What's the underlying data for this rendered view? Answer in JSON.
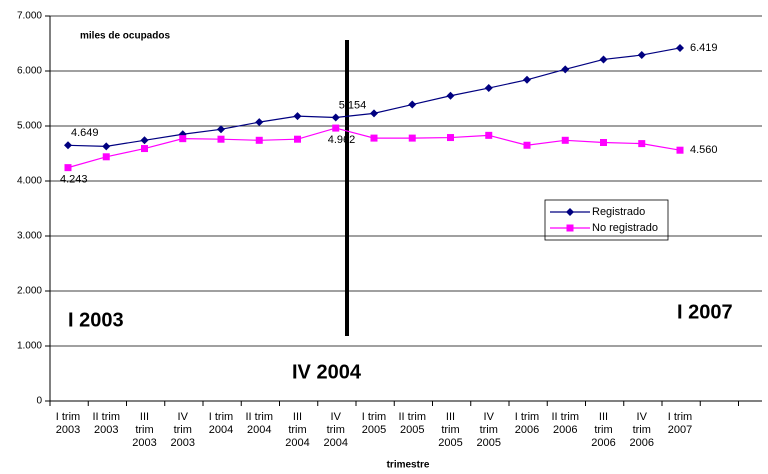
{
  "chart_data": {
    "type": "line",
    "subtitle": "miles de ocupados",
    "x_label": "trimestre",
    "annotations": [
      "I 2003",
      "IV 2004",
      "I 2007"
    ],
    "categories": [
      "I trim\n2003",
      "II trim\n2003",
      "III\ntrim\n2003",
      "IV\ntrim\n2003",
      "I trim\n2004",
      "II trim\n2004",
      "III\ntrim\n2004",
      "IV\ntrim\n2004",
      "I trim\n2005",
      "II trim\n2005",
      "III\ntrim\n2005",
      "IV\ntrim\n2005",
      "I trim\n2006",
      "II trim\n2006",
      "III\ntrim\n2006",
      "IV\ntrim\n2006",
      "I trim\n2007"
    ],
    "series": [
      {
        "name": "Registrado",
        "color": "#000080",
        "marker": "diamond",
        "values": [
          4649,
          4630,
          4740,
          4850,
          4940,
          5070,
          5180,
          5154,
          5230,
          5390,
          5550,
          5690,
          5840,
          6030,
          6210,
          6290,
          6419
        ],
        "value_labels": [
          "4.649",
          null,
          null,
          null,
          null,
          null,
          null,
          "5.154",
          null,
          null,
          null,
          null,
          null,
          null,
          null,
          null,
          "6.419"
        ]
      },
      {
        "name": "No registrado",
        "color": "#ff00ff",
        "marker": "square",
        "values": [
          4243,
          4440,
          4590,
          4770,
          4760,
          4740,
          4760,
          4962,
          4780,
          4780,
          4790,
          4830,
          4650,
          4740,
          4700,
          4680,
          4560
        ],
        "value_labels": [
          "4.243",
          null,
          null,
          null,
          null,
          null,
          null,
          "4.962",
          null,
          null,
          null,
          null,
          null,
          null,
          null,
          null,
          "4.560"
        ]
      }
    ],
    "ylim": [
      0,
      7000
    ],
    "yticks": [
      {
        "value": 0,
        "label": "0"
      },
      {
        "value": 1000,
        "label": "1.000"
      },
      {
        "value": 2000,
        "label": "2.000"
      },
      {
        "value": 3000,
        "label": "3.000"
      },
      {
        "value": 4000,
        "label": "4.000"
      },
      {
        "value": 5000,
        "label": "5.000"
      },
      {
        "value": 6000,
        "label": "6.000"
      },
      {
        "value": 7000,
        "label": "7.000"
      }
    ],
    "grid": true
  }
}
